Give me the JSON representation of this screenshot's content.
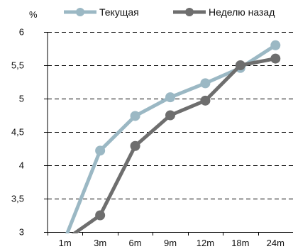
{
  "chart_data": {
    "type": "line",
    "y_unit": "%",
    "categories": [
      "1m",
      "3m",
      "6m",
      "9m",
      "12m",
      "18m",
      "24m"
    ],
    "y_ticks": [
      "3",
      "3,5",
      "4",
      "4,5",
      "5",
      "5,5",
      "6"
    ],
    "ylim": [
      3,
      6
    ],
    "grid": "horizontal dashed",
    "legend_position": "top",
    "series": [
      {
        "name": "Текущая",
        "color": "#9bb8c4",
        "values": [
          2.9,
          4.22,
          4.74,
          5.02,
          5.23,
          5.46,
          5.8
        ]
      },
      {
        "name": "Неделю назад",
        "color": "#6e6e6e",
        "values": [
          2.88,
          3.25,
          4.29,
          4.75,
          4.97,
          5.5,
          5.6
        ]
      }
    ]
  }
}
